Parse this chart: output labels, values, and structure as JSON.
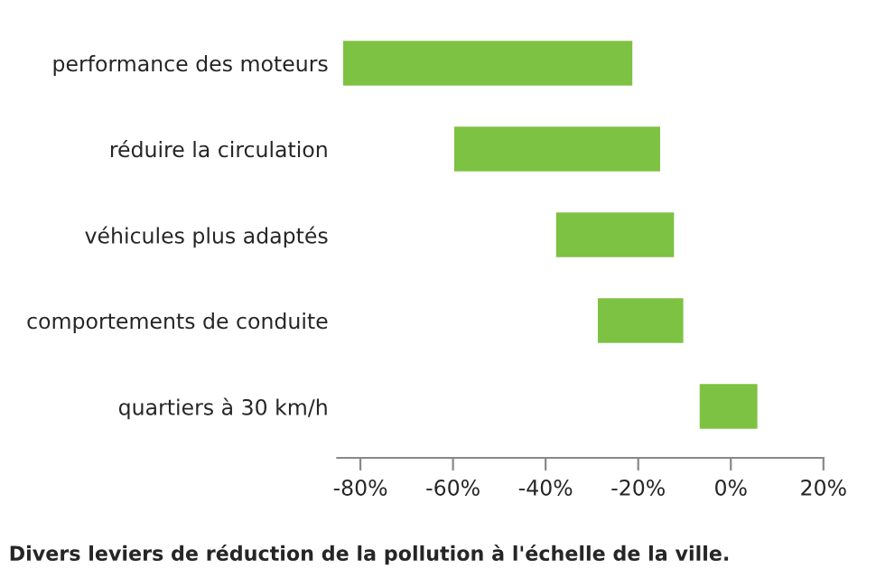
{
  "chart_data": {
    "type": "bar",
    "orientation": "horizontal",
    "title": "Divers leviers de réduction de la pollution à l'échelle de la ville.",
    "categories": [
      "performance des moteurs",
      "réduire la circulation",
      "véhicules plus adaptés",
      "comportements de conduite",
      "quartiers à 30 km/h"
    ],
    "base": [
      -84,
      -60,
      -38,
      -29,
      -7
    ],
    "values": [
      63,
      45,
      26,
      19,
      13
    ],
    "color": "#7dc242",
    "xlim": [
      -85,
      20
    ],
    "xticks": [
      {
        "value": -80,
        "label": "-80%"
      },
      {
        "value": -60,
        "label": "-60%"
      },
      {
        "value": -40,
        "label": "-40%"
      },
      {
        "value": -20,
        "label": "-20%"
      },
      {
        "value": 0,
        "label": "0%"
      },
      {
        "value": 20,
        "label": "20%"
      }
    ],
    "grid": false,
    "legend": false
  }
}
